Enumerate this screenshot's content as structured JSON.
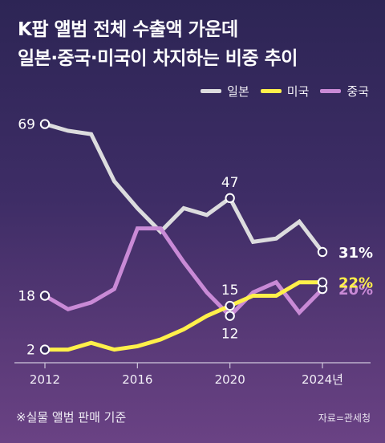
{
  "header": {
    "title_line1": "K팝 앨범 전체 수출액 가운데",
    "title_line2": "일본·중국·미국이 차지하는 비중 추이"
  },
  "footer": {
    "note": "※실물 앨범 판매 기준",
    "source": "자료=관세청"
  },
  "chart_data": {
    "type": "line",
    "x": [
      2012,
      2013,
      2014,
      2015,
      2016,
      2017,
      2018,
      2019,
      2020,
      2021,
      2022,
      2023,
      2024
    ],
    "x_tick_labels": [
      "2012",
      "2016",
      "2020",
      "2024년"
    ],
    "x_tick_values": [
      2012,
      2016,
      2020,
      2024
    ],
    "ylim": [
      0,
      75
    ],
    "grid": false,
    "legend_position": "top-right",
    "series": [
      {
        "name": "일본",
        "color": "#dcdcde",
        "values": [
          69,
          67,
          66,
          52,
          44,
          37,
          44,
          42,
          47,
          34,
          35,
          40,
          31
        ],
        "point_labels": [
          {
            "index": 0,
            "text": "69",
            "pos": "left"
          },
          {
            "index": 8,
            "text": "47",
            "pos": "above"
          },
          {
            "index": 12,
            "text": "31%",
            "pos": "right"
          }
        ]
      },
      {
        "name": "미국",
        "color": "#fff04a",
        "values": [
          2,
          2,
          4,
          2,
          3,
          5,
          8,
          12,
          15,
          18,
          18,
          22,
          22
        ],
        "point_labels": [
          {
            "index": 0,
            "text": "2",
            "pos": "left"
          },
          {
            "index": 8,
            "text": "15",
            "pos": "above"
          },
          {
            "index": 12,
            "text": "22%",
            "pos": "right"
          }
        ]
      },
      {
        "name": "중국",
        "color": "#c98ad6",
        "values": [
          18,
          14,
          16,
          20,
          38,
          38,
          28,
          19,
          12,
          19,
          22,
          13,
          20
        ],
        "point_labels": [
          {
            "index": 0,
            "text": "18",
            "pos": "left"
          },
          {
            "index": 8,
            "text": "12",
            "pos": "below"
          },
          {
            "index": 12,
            "text": "20%",
            "pos": "right"
          }
        ]
      }
    ]
  }
}
